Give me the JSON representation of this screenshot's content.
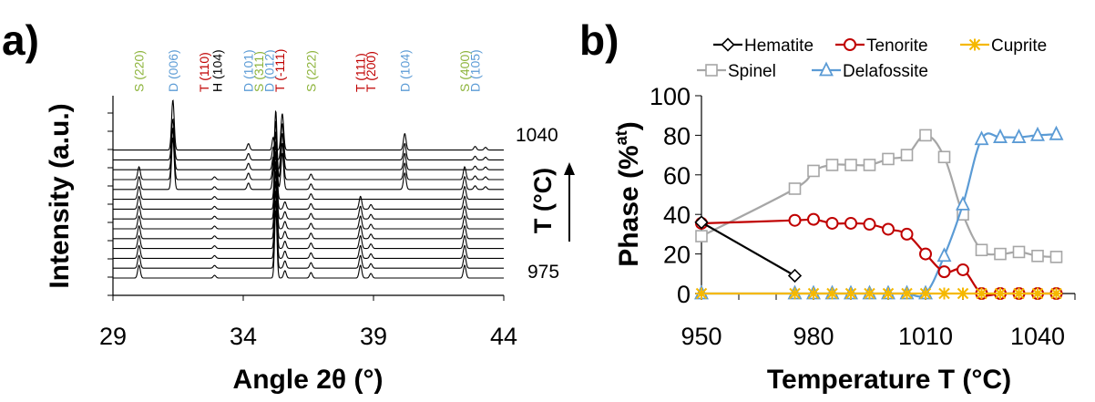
{
  "chart_data": [
    {
      "type": "line",
      "panel_label": "a)",
      "title": "",
      "xlabel": "Angle 2θ (°)",
      "ylabel": "Intensity (a.u.)",
      "xlim": [
        29,
        44
      ],
      "x_ticks": [
        "29",
        "34",
        "39",
        "44"
      ],
      "temperature_axis_label": "T (°C)",
      "temperature_top": "1040",
      "temperature_bottom": "975",
      "pattern_count": 14,
      "peak_labels": [
        {
          "text": "S (220)",
          "x": 30.0,
          "color": "#8db43c"
        },
        {
          "text": "D (006)",
          "x": 31.3,
          "color": "#5b9bd5"
        },
        {
          "text": "T (110)",
          "x": 32.5,
          "color": "#c00000"
        },
        {
          "text": "H (104)",
          "x": 33.0,
          "color": "#000000"
        },
        {
          "text": "D (101)",
          "x": 34.2,
          "color": "#5b9bd5"
        },
        {
          "text": "S (311)",
          "x": 34.6,
          "color": "#8db43c"
        },
        {
          "text": "D (012)",
          "x": 35.0,
          "color": "#5b9bd5"
        },
        {
          "text": "T (-111)",
          "x": 35.4,
          "color": "#c00000"
        },
        {
          "text": "S (222)",
          "x": 36.6,
          "color": "#8db43c"
        },
        {
          "text": "T (111)",
          "x": 38.5,
          "color": "#c00000"
        },
        {
          "text": "T (200)",
          "x": 38.9,
          "color": "#c00000"
        },
        {
          "text": "D (104)",
          "x": 40.2,
          "color": "#5b9bd5"
        },
        {
          "text": "S (400)",
          "x": 42.5,
          "color": "#8db43c"
        },
        {
          "text": "D (105)",
          "x": 42.9,
          "color": "#5b9bd5"
        }
      ]
    },
    {
      "type": "line",
      "panel_label": "b)",
      "title": "",
      "xlabel": "Temperature T (°C)",
      "ylabel": "Phase (%at)",
      "ylabel_main": "Phase (%",
      "ylabel_sup": "at",
      "ylabel_end": ")",
      "xlim": [
        950,
        1050
      ],
      "ylim": [
        0,
        100
      ],
      "x_ticks": [
        "950",
        "980",
        "1010",
        "1040"
      ],
      "y_ticks": [
        "0",
        "20",
        "40",
        "60",
        "80",
        "100"
      ],
      "legend_position": "top",
      "series": [
        {
          "name": "Hematite",
          "color": "#000000",
          "marker": "diamond",
          "x": [
            950,
            975
          ],
          "y": [
            36,
            9
          ]
        },
        {
          "name": "Tenorite",
          "color": "#c00000",
          "marker": "circle",
          "x": [
            950,
            975,
            980,
            985,
            990,
            995,
            1000,
            1005,
            1010,
            1015,
            1020,
            1025,
            1030,
            1035,
            1040,
            1045
          ],
          "y": [
            35.5,
            37,
            37.5,
            35.5,
            35.5,
            35,
            32.5,
            30,
            20,
            11,
            12,
            0,
            0,
            0,
            0,
            0
          ]
        },
        {
          "name": "Cuprite",
          "color": "#f5b800",
          "marker": "star",
          "x": [
            950,
            975,
            980,
            985,
            990,
            995,
            1000,
            1005,
            1010,
            1015,
            1020,
            1025,
            1030,
            1035,
            1040,
            1045
          ],
          "y": [
            0,
            0,
            0,
            0,
            0,
            0,
            0,
            0,
            0,
            0,
            0,
            0,
            0,
            0,
            0,
            0
          ]
        },
        {
          "name": "Spinel",
          "color": "#a6a6a6",
          "marker": "square",
          "x": [
            950,
            975,
            980,
            985,
            990,
            995,
            1000,
            1005,
            1010,
            1015,
            1020,
            1025,
            1030,
            1035,
            1040,
            1045
          ],
          "y": [
            29,
            53,
            62,
            65,
            65,
            65,
            68,
            70,
            80,
            69,
            40,
            22,
            20,
            21,
            19,
            18.5
          ]
        },
        {
          "name": "Delafossite",
          "color": "#5b9bd5",
          "marker": "triangle",
          "x": [
            950,
            975,
            980,
            985,
            990,
            995,
            1000,
            1005,
            1010,
            1015,
            1020,
            1025,
            1030,
            1035,
            1040,
            1045
          ],
          "y": [
            0,
            0,
            0,
            0,
            0,
            0,
            0,
            0,
            0,
            19,
            45,
            78,
            79,
            79,
            80,
            80.5
          ]
        }
      ]
    }
  ]
}
